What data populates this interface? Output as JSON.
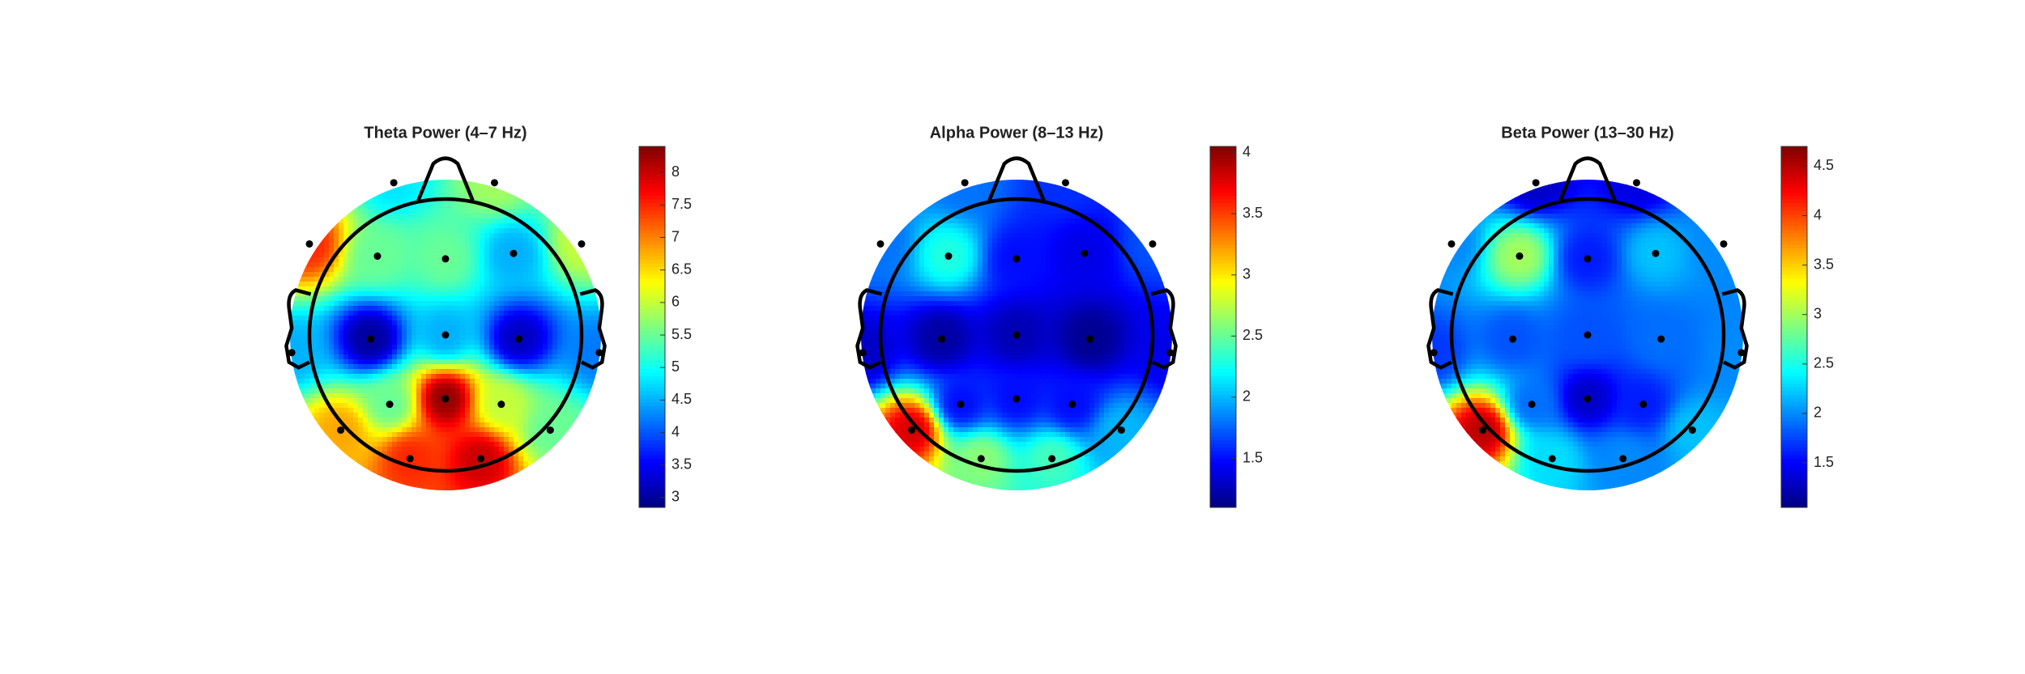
{
  "chart_data": [
    {
      "type": "topoplot",
      "title": "Theta Power (4–7 Hz)",
      "colormap": "jet",
      "x": [
        -0.38,
        0.36,
        -1.0,
        -0.5,
        0,
        0.5,
        1.0,
        -1.13,
        -0.55,
        0,
        0.54,
        1.13,
        -0.77,
        -0.41,
        0,
        0.41,
        0.77,
        -0.26,
        0.26
      ],
      "y": [
        1.12,
        1.12,
        0.67,
        0.58,
        0.56,
        0.6,
        0.67,
        -0.13,
        -0.03,
        0,
        -0.03,
        -0.13,
        -0.7,
        -0.51,
        -0.47,
        -0.51,
        -0.7,
        -0.91,
        -0.91
      ],
      "values": [
        4.8,
        5.8,
        7.5,
        5.5,
        5.5,
        4.5,
        6.0,
        4.5,
        3.0,
        4.5,
        3.2,
        4.2,
        6.8,
        5.5,
        8.3,
        6.0,
        5.5,
        7.5,
        8.0
      ],
      "clim": [
        2.85,
        8.4
      ],
      "cticks": [
        3,
        3.5,
        4,
        4.5,
        5,
        5.5,
        6,
        6.5,
        7,
        7.5,
        8
      ]
    },
    {
      "type": "topoplot",
      "title": "Alpha Power (8–13 Hz)",
      "colormap": "jet",
      "x": [
        -0.38,
        0.36,
        -1.0,
        -0.5,
        0,
        0.5,
        1.0,
        -1.13,
        -0.55,
        0,
        0.54,
        1.13,
        -0.77,
        -0.41,
        0,
        0.41,
        0.77,
        -0.26,
        0.26
      ],
      "y": [
        1.12,
        1.12,
        0.67,
        0.58,
        0.56,
        0.6,
        0.67,
        -0.13,
        -0.03,
        0,
        -0.03,
        -0.13,
        -0.7,
        -0.51,
        -0.47,
        -0.51,
        -0.7,
        -0.91,
        -0.91
      ],
      "values": [
        1.8,
        1.6,
        1.8,
        2.3,
        1.5,
        1.4,
        1.7,
        1.3,
        1.2,
        1.25,
        1.15,
        1.4,
        3.8,
        1.5,
        1.5,
        1.5,
        2.0,
        2.6,
        2.4
      ],
      "clim": [
        1.1,
        4.05
      ],
      "cticks": [
        1.5,
        2,
        2.5,
        3,
        3.5,
        4
      ]
    },
    {
      "type": "topoplot",
      "title": "Beta Power (13–30 Hz)",
      "colormap": "jet",
      "x": [
        -0.38,
        0.36,
        -1.0,
        -0.5,
        0,
        0.5,
        1.0,
        -1.13,
        -0.55,
        0,
        0.54,
        1.13,
        -0.77,
        -0.41,
        0,
        0.41,
        0.77,
        -0.26,
        0.26
      ],
      "y": [
        1.12,
        1.12,
        0.67,
        0.58,
        0.56,
        0.6,
        0.67,
        -0.13,
        -0.03,
        0,
        -0.03,
        -0.13,
        -0.7,
        -0.51,
        -0.47,
        -0.51,
        -0.7,
        -0.91,
        -0.91
      ],
      "values": [
        1.3,
        1.4,
        2.0,
        3.0,
        1.6,
        2.2,
        2.0,
        1.7,
        1.8,
        1.8,
        1.9,
        2.0,
        4.5,
        1.9,
        1.3,
        1.6,
        2.2,
        2.3,
        2.0
      ],
      "clim": [
        1.05,
        4.7
      ],
      "cticks": [
        1.5,
        2,
        2.5,
        3,
        3.5,
        4,
        4.5
      ]
    }
  ]
}
